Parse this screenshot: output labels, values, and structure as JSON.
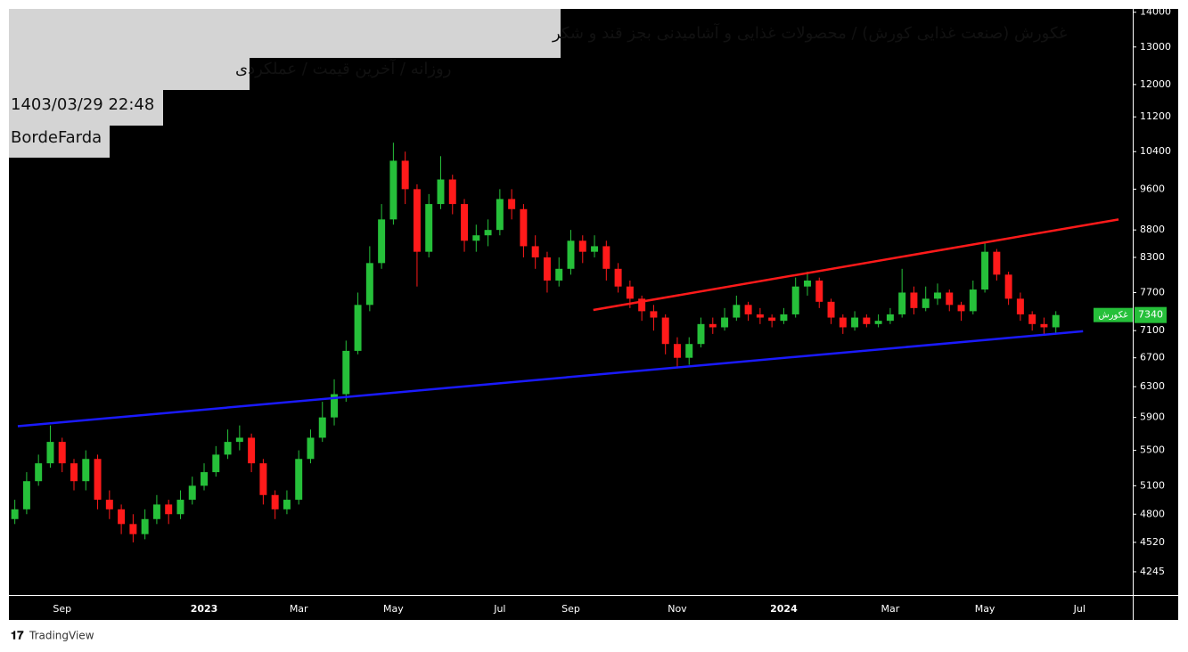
{
  "chart_data": {
    "type": "candlestick",
    "title": "غکورش (صنعت غذایی کورش) / محصولات غذایی و آشامیدنی بجز قند و شکر",
    "subtitle": "روزانه / آخرین قیمت / عملکردی",
    "datetime": "1403/03/29 22:48",
    "author": "BordeFarda",
    "brand": "TradingView",
    "symbol": "غکورش",
    "last_price": 7340,
    "log_scale": true,
    "up_color": "#26c03a",
    "down_color": "#ff1a1a",
    "ylim": [
      4040,
      14100
    ],
    "yticks": [
      14000,
      13000,
      12000,
      11200,
      10400,
      9600,
      8800,
      8300,
      7700,
      7100,
      6700,
      6300,
      5900,
      5500,
      5100,
      4800,
      4520,
      4245
    ],
    "categories": [
      null,
      null,
      null,
      null,
      "Sep",
      null,
      null,
      null,
      null,
      null,
      null,
      null,
      null,
      null,
      null,
      null,
      "2023",
      null,
      null,
      null,
      null,
      null,
      null,
      null,
      "Mar",
      null,
      null,
      null,
      null,
      null,
      null,
      null,
      "May",
      null,
      null,
      null,
      null,
      null,
      null,
      null,
      null,
      "Jul",
      null,
      null,
      null,
      null,
      null,
      "Sep",
      null,
      null,
      null,
      null,
      null,
      null,
      null,
      null,
      "Nov",
      null,
      null,
      null,
      null,
      null,
      null,
      null,
      null,
      "2024",
      null,
      null,
      null,
      null,
      null,
      null,
      null,
      null,
      "Mar",
      null,
      null,
      null,
      null,
      null,
      null,
      null,
      "May",
      null,
      null,
      null,
      null,
      null,
      null,
      null,
      "Jul",
      null,
      null,
      null,
      null
    ],
    "open": [
      4750,
      4850,
      5150,
      5350,
      5600,
      5350,
      5150,
      5400,
      4950,
      4850,
      4700,
      4600,
      4750,
      4900,
      4800,
      4950,
      5100,
      5250,
      5450,
      5600,
      5650,
      5350,
      5000,
      4850,
      4950,
      5400,
      5650,
      5900,
      6200,
      6800,
      7500,
      8200,
      9000,
      10200,
      9600,
      8400,
      9300,
      9800,
      9300,
      8600,
      8700,
      8800,
      9400,
      9200,
      8500,
      8300,
      7900,
      8100,
      8600,
      8400,
      8500,
      8100,
      7800,
      7600,
      7400,
      7300,
      6900,
      6700,
      6900,
      7200,
      7150,
      7300,
      7500,
      7350,
      7300,
      7250,
      7350,
      7800,
      7900,
      7550,
      7300,
      7150,
      7300,
      7200,
      7250,
      7350,
      7700,
      7450,
      7600,
      7700,
      7500,
      7400,
      7750,
      8400,
      8000,
      7600,
      7350,
      7200,
      7150,
      null,
      null,
      null,
      null,
      null,
      null
    ],
    "high": [
      4950,
      5250,
      5450,
      5800,
      5650,
      5400,
      5500,
      5450,
      5050,
      4900,
      4800,
      4850,
      5000,
      4950,
      5050,
      5200,
      5350,
      5550,
      5750,
      5800,
      5700,
      5400,
      5050,
      5050,
      5500,
      5750,
      6100,
      6400,
      6950,
      7700,
      8500,
      9300,
      10600,
      10400,
      9700,
      9500,
      10300,
      9900,
      9400,
      8900,
      9000,
      9600,
      9600,
      9300,
      8700,
      8400,
      8300,
      8800,
      8700,
      8700,
      8600,
      8200,
      7900,
      7650,
      7500,
      7350,
      7000,
      7000,
      7300,
      7300,
      7450,
      7650,
      7550,
      7450,
      7350,
      7450,
      7950,
      8050,
      7950,
      7600,
      7350,
      7400,
      7350,
      7350,
      7450,
      8100,
      7800,
      7800,
      7850,
      7750,
      7550,
      7900,
      8550,
      8450,
      8050,
      7700,
      7400,
      7300,
      7400,
      null,
      null,
      null,
      null,
      null,
      null
    ],
    "low": [
      4700,
      4800,
      5100,
      5300,
      5250,
      5050,
      5050,
      4850,
      4750,
      4600,
      4520,
      4550,
      4700,
      4700,
      4750,
      4900,
      5050,
      5200,
      5400,
      5500,
      5250,
      4900,
      4750,
      4800,
      4900,
      5350,
      5600,
      5800,
      6100,
      6750,
      7400,
      8100,
      8900,
      9300,
      7800,
      8300,
      9200,
      9100,
      8400,
      8400,
      8500,
      8700,
      9000,
      8300,
      8100,
      7700,
      7800,
      8000,
      8200,
      8300,
      7900,
      7700,
      7450,
      7250,
      7100,
      6750,
      6550,
      6600,
      6850,
      7050,
      7100,
      7250,
      7250,
      7200,
      7150,
      7200,
      7300,
      7650,
      7450,
      7200,
      7050,
      7100,
      7150,
      7150,
      7200,
      7300,
      7350,
      7400,
      7500,
      7400,
      7250,
      7350,
      7700,
      7900,
      7500,
      7250,
      7100,
      7050,
      7050,
      null,
      null,
      null,
      null,
      null,
      null
    ],
    "close": [
      4850,
      5150,
      5350,
      5600,
      5350,
      5150,
      5400,
      4950,
      4850,
      4700,
      4600,
      4750,
      4900,
      4800,
      4950,
      5100,
      5250,
      5450,
      5600,
      5650,
      5350,
      5000,
      4850,
      4950,
      5400,
      5650,
      5900,
      6200,
      6800,
      7500,
      8200,
      9000,
      10200,
      9600,
      8400,
      9300,
      9800,
      9300,
      8600,
      8700,
      8800,
      9400,
      9200,
      8500,
      8300,
      7900,
      8100,
      8600,
      8400,
      8500,
      8100,
      7800,
      7600,
      7400,
      7300,
      6900,
      6700,
      6900,
      7200,
      7150,
      7300,
      7500,
      7350,
      7300,
      7250,
      7350,
      7800,
      7900,
      7550,
      7300,
      7150,
      7300,
      7200,
      7250,
      7350,
      7700,
      7450,
      7600,
      7700,
      7500,
      7400,
      7750,
      8400,
      8000,
      7600,
      7350,
      7200,
      7150,
      7340,
      null,
      null,
      null,
      null,
      null,
      null
    ],
    "trendlines": [
      {
        "color": "#ff1a1a",
        "x": [
          48.9,
          93.3
        ],
        "values": [
          7420,
          9000
        ]
      },
      {
        "color": "#1a1aff",
        "x": [
          0.25,
          90.3
        ],
        "values": [
          5790,
          7090
        ]
      }
    ]
  }
}
